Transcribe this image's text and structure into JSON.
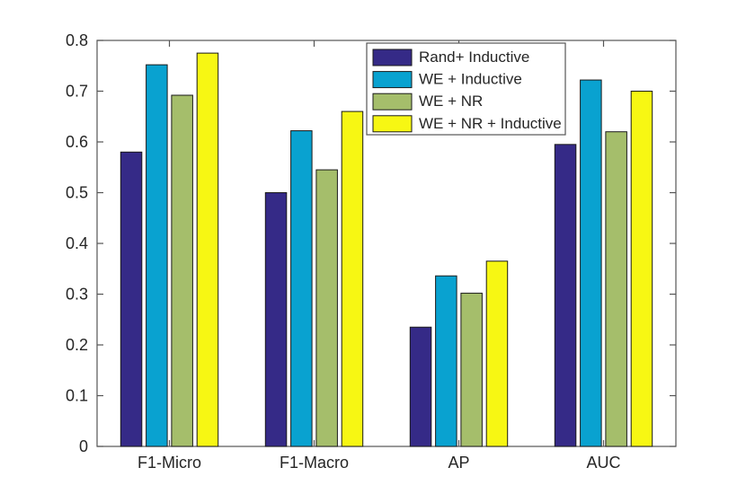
{
  "chart_data": {
    "type": "bar",
    "title": "",
    "xlabel": "",
    "ylabel": "",
    "categories": [
      "F1-Micro",
      "F1-Macro",
      "AP",
      "AUC"
    ],
    "series": [
      {
        "name": "Rand+ Inductive",
        "color": "#352A87",
        "values": [
          0.58,
          0.5,
          0.235,
          0.595
        ]
      },
      {
        "name": "WE + Inductive",
        "color": "#09A2D0",
        "values": [
          0.752,
          0.622,
          0.336,
          0.722
        ]
      },
      {
        "name": "WE + NR",
        "color": "#A5BE6B",
        "values": [
          0.692,
          0.545,
          0.302,
          0.62
        ]
      },
      {
        "name": "WE + NR + Inductive",
        "color": "#F7F713",
        "values": [
          0.775,
          0.66,
          0.365,
          0.7
        ]
      }
    ],
    "ylim": [
      0,
      0.8
    ],
    "yticks": [
      0,
      0.1,
      0.2,
      0.3,
      0.4,
      0.5,
      0.6,
      0.7,
      0.8
    ],
    "ytick_labels": [
      "0",
      "0.1",
      "0.2",
      "0.3",
      "0.4",
      "0.5",
      "0.6",
      "0.7",
      "0.8"
    ],
    "grid": false,
    "legend_position": "inside-top-center-right",
    "bar_edge_color": "#1a1a1a",
    "axis_color": "#555555",
    "text_color": "#262626"
  }
}
